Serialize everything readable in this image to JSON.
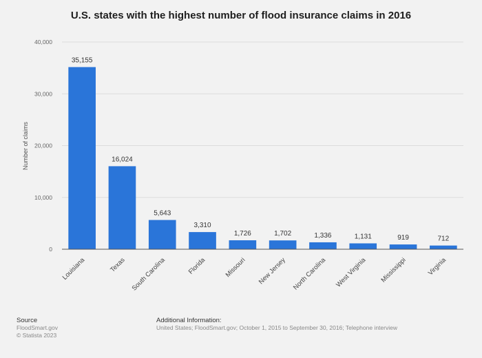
{
  "chart_data": {
    "type": "bar",
    "title": "U.S. states with the highest number of flood insurance claims in 2016",
    "ylabel": "Number of claims",
    "xlabel": "",
    "ylim": [
      0,
      40000
    ],
    "yticks": [
      0,
      10000,
      20000,
      30000,
      40000
    ],
    "ytick_labels": [
      "0",
      "10,000",
      "20,000",
      "30,000",
      "40,000"
    ],
    "categories": [
      "Louisiana",
      "Texas",
      "South Carolina",
      "Florida",
      "Missouri",
      "New Jersey",
      "North Carolina",
      "West Virginia",
      "Mississippi",
      "Virginia"
    ],
    "values": [
      35155,
      16024,
      5643,
      3310,
      1726,
      1702,
      1336,
      1131,
      919,
      712
    ],
    "value_labels": [
      "35,155",
      "16,024",
      "5,643",
      "3,310",
      "1,726",
      "1,702",
      "1,336",
      "1,131",
      "919",
      "712"
    ],
    "grid": true,
    "bar_color": "#2a75d9"
  },
  "footer": {
    "source_heading": "Source",
    "source_lines": [
      "FloodSmart.gov",
      "© Statista 2023"
    ],
    "info_heading": "Additional Information:",
    "info_text": "United States; FloodSmart.gov; October 1, 2015 to September 30, 2016; Telephone interview"
  }
}
